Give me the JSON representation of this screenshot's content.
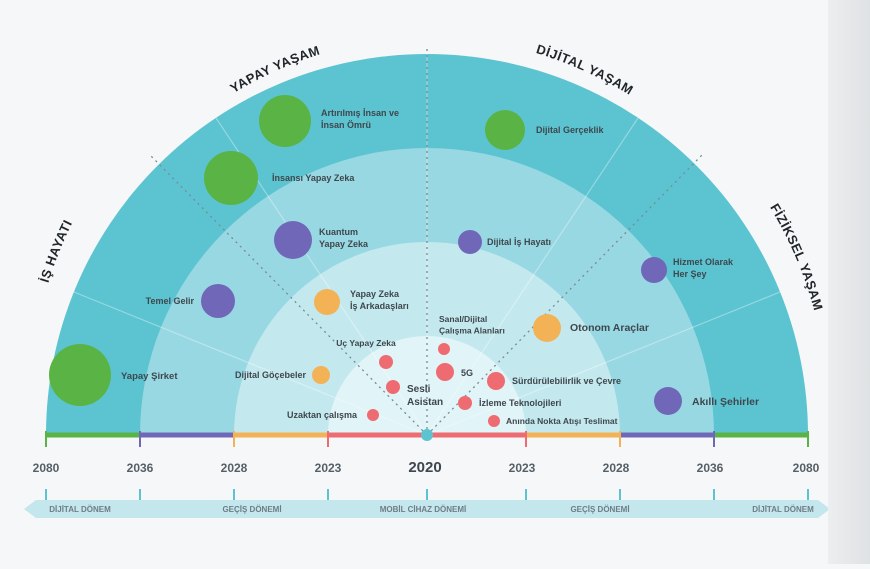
{
  "sections": {
    "is_hayati": "İŞ HAYATI",
    "yapay_yasam": "YAPAY YAŞAM",
    "dijital_yasam": "DİJİTAL YAŞAM",
    "fiziksel_yasam": "FİZİKSEL YAŞAM"
  },
  "colors": {
    "green": "#5ab345",
    "purple": "#7067b8",
    "orange": "#f3b256",
    "red": "#ef6b72",
    "outer_teal": "#5cc4d1",
    "mid_teal": "#98d8e2",
    "inner_teal": "#c3e9ef",
    "core": "#e1f4f7"
  },
  "timeline": {
    "center_year": "2020",
    "years_left": [
      "2080",
      "2036",
      "2028",
      "2023"
    ],
    "years_right": [
      "2023",
      "2028",
      "2036",
      "2080"
    ]
  },
  "eras": [
    "DİJİTAL DÖNEM",
    "GEÇİŞ DÖNEMİ",
    "MOBİL CİHAZ DÖNEMİ",
    "GEÇİŞ DÖNEMİ",
    "DİJİTAL DÖNEM"
  ],
  "items": [
    {
      "id": "artirilmis-insan",
      "lines": [
        "Artırılmış İnsan ve",
        "İnsan Ömrü"
      ],
      "color": "green"
    },
    {
      "id": "insansi-yapay-zeka",
      "lines": [
        "İnsansı Yapay Zeka"
      ],
      "color": "green"
    },
    {
      "id": "kuantum-yapay-zeka",
      "lines": [
        "Kuantum",
        "Yapay Zeka"
      ],
      "color": "purple"
    },
    {
      "id": "temel-gelir",
      "lines": [
        "Temel Gelir"
      ],
      "color": "purple"
    },
    {
      "id": "yapay-sirket",
      "lines": [
        "Yapay Şirket"
      ],
      "color": "green"
    },
    {
      "id": "yapay-zeka-is-arkadaslari",
      "lines": [
        "Yapay Zeka",
        "İş Arkadaşları"
      ],
      "color": "orange"
    },
    {
      "id": "dijital-gocebeler",
      "lines": [
        "Dijital Göçebeler"
      ],
      "color": "orange"
    },
    {
      "id": "uc-yapay-zeka",
      "lines": [
        "Uç Yapay Zeka"
      ],
      "color": "red"
    },
    {
      "id": "sesli-asistan",
      "lines": [
        "Sesli",
        "Asistan"
      ],
      "color": "red"
    },
    {
      "id": "uzaktan-calisma",
      "lines": [
        "Uzaktan çalışma"
      ],
      "color": "red"
    },
    {
      "id": "dijital-gerceklik",
      "lines": [
        "Dijital Gerçeklik"
      ],
      "color": "green"
    },
    {
      "id": "dijital-is-hayati",
      "lines": [
        "Dijital İş Hayatı"
      ],
      "color": "purple"
    },
    {
      "id": "hizmet-olarak-her-sey",
      "lines": [
        "Hizmet Olarak",
        "Her Şey"
      ],
      "color": "purple"
    },
    {
      "id": "sanal-dijital-calisma",
      "lines": [
        "Sanal/Dijital",
        "Çalışma Alanları"
      ],
      "color": "red"
    },
    {
      "id": "otonom-araclar",
      "lines": [
        "Otonom Araçlar"
      ],
      "color": "orange"
    },
    {
      "id": "5g",
      "lines": [
        "5G"
      ],
      "color": "red"
    },
    {
      "id": "surdurulebilirlik",
      "lines": [
        "Sürdürülebilirlik ve Çevre"
      ],
      "color": "red"
    },
    {
      "id": "izleme-teknolojileri",
      "lines": [
        "İzleme Teknolojileri"
      ],
      "color": "red"
    },
    {
      "id": "aninda-teslimat",
      "lines": [
        "Anında Nokta Atışı Teslimat"
      ],
      "color": "red"
    },
    {
      "id": "akilli-sehirler",
      "lines": [
        "Akıllı Şehirler"
      ],
      "color": "purple"
    }
  ]
}
